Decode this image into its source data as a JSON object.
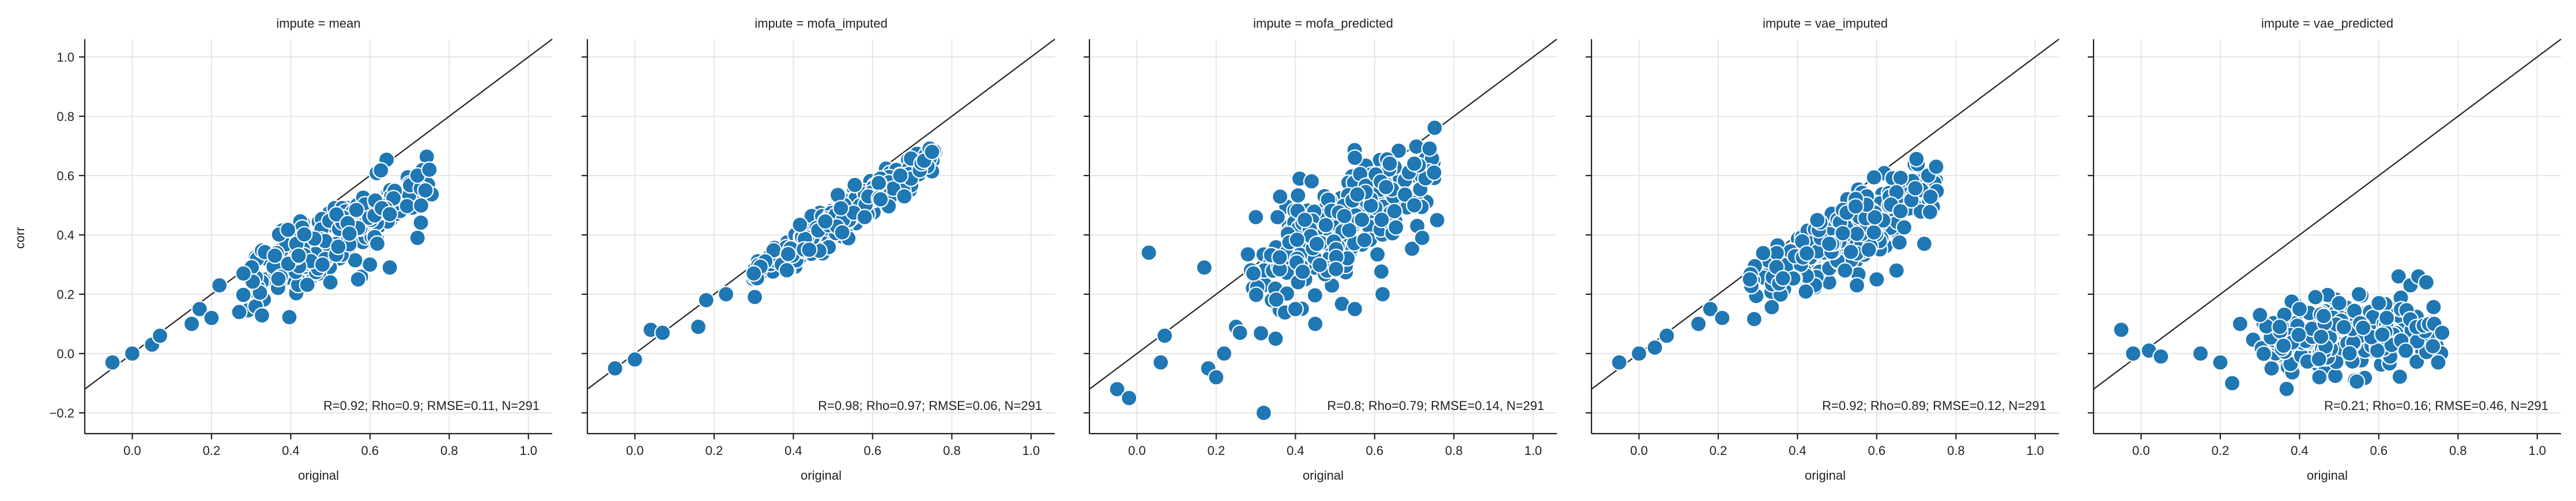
{
  "chart_data": {
    "type": "scatter",
    "facet_var": "impute",
    "xlabel": "original",
    "ylabel": "corr",
    "xlim": [
      -0.12,
      1.06
    ],
    "ylim": [
      -0.27,
      1.06
    ],
    "xticks": [
      0.0,
      0.2,
      0.4,
      0.6,
      0.8,
      1.0
    ],
    "yticks": [
      -0.2,
      0.0,
      0.2,
      0.4,
      0.6,
      0.8,
      1.0
    ],
    "xtick_labels": [
      "0.0",
      "0.2",
      "0.4",
      "0.6",
      "0.8",
      "1.0"
    ],
    "ytick_labels": [
      "−0.2",
      "0.0",
      "0.2",
      "0.4",
      "0.6",
      "0.8",
      "1.0"
    ],
    "grid": true,
    "point_color": "#1f77b4",
    "reference_line": "y = x",
    "panels": [
      {
        "title": "impute = mean",
        "stats": "R=0.92; Rho=0.9; RMSE=0.11, N=291",
        "model": {
          "slope": 0.78,
          "intercept": 0.0,
          "noise": 0.055
        },
        "points": [
          [
            -0.05,
            -0.03
          ],
          [
            0.0,
            0.0
          ],
          [
            0.05,
            0.03
          ],
          [
            0.07,
            0.06
          ],
          [
            0.15,
            0.1
          ],
          [
            0.17,
            0.15
          ],
          [
            0.2,
            0.12
          ],
          [
            0.22,
            0.23
          ],
          [
            0.27,
            0.14
          ],
          [
            0.36,
            0.33
          ],
          [
            0.42,
            0.33
          ],
          [
            0.48,
            0.3
          ],
          [
            0.5,
            0.24
          ],
          [
            0.52,
            0.36
          ],
          [
            0.57,
            0.25
          ],
          [
            0.6,
            0.3
          ],
          [
            0.63,
            0.49
          ],
          [
            0.65,
            0.47
          ],
          [
            0.65,
            0.29
          ],
          [
            0.72,
            0.39
          ],
          [
            0.72,
            0.6
          ],
          [
            0.75,
            0.62
          ],
          [
            0.74,
            0.55
          ]
        ]
      },
      {
        "title": "impute = mofa_imputed",
        "stats": "R=0.98; Rho=0.97; RMSE=0.06, N=291",
        "model": {
          "slope": 0.88,
          "intercept": 0.0,
          "noise": 0.03
        },
        "points": [
          [
            -0.05,
            -0.05
          ],
          [
            0.0,
            -0.02
          ],
          [
            0.04,
            0.08
          ],
          [
            0.07,
            0.07
          ],
          [
            0.16,
            0.09
          ],
          [
            0.18,
            0.18
          ],
          [
            0.23,
            0.2
          ],
          [
            0.3,
            0.27
          ],
          [
            0.44,
            0.35
          ],
          [
            0.52,
            0.49
          ],
          [
            0.58,
            0.46
          ],
          [
            0.62,
            0.52
          ],
          [
            0.67,
            0.6
          ],
          [
            0.68,
            0.53
          ],
          [
            0.73,
            0.65
          ],
          [
            0.75,
            0.68
          ]
        ]
      },
      {
        "title": "impute = mofa_predicted",
        "stats": "R=0.8; Rho=0.79; RMSE=0.14, N=291",
        "model": {
          "slope": 0.83,
          "intercept": 0.0,
          "noise": 0.09
        },
        "points": [
          [
            -0.05,
            -0.12
          ],
          [
            -0.02,
            -0.15
          ],
          [
            0.03,
            0.34
          ],
          [
            0.06,
            -0.03
          ],
          [
            0.07,
            0.06
          ],
          [
            0.17,
            0.29
          ],
          [
            0.18,
            -0.05
          ],
          [
            0.2,
            -0.08
          ],
          [
            0.22,
            0.0
          ],
          [
            0.25,
            0.09
          ],
          [
            0.26,
            0.07
          ],
          [
            0.3,
            0.46
          ],
          [
            0.32,
            -0.2
          ],
          [
            0.35,
            0.05
          ],
          [
            0.4,
            0.15
          ],
          [
            0.45,
            0.1
          ],
          [
            0.55,
            0.66
          ],
          [
            0.62,
            0.2
          ],
          [
            0.65,
            0.48
          ],
          [
            0.7,
            0.64
          ],
          [
            0.7,
            0.5
          ],
          [
            0.72,
            0.39
          ],
          [
            0.75,
            0.61
          ],
          [
            0.55,
            0.15
          ]
        ]
      },
      {
        "title": "impute = vae_imputed",
        "stats": "R=0.92; Rho=0.89; RMSE=0.12, N=291",
        "model": {
          "slope": 0.78,
          "intercept": 0.0,
          "noise": 0.055
        },
        "points": [
          [
            -0.05,
            -0.03
          ],
          [
            0.0,
            0.0
          ],
          [
            0.04,
            0.02
          ],
          [
            0.07,
            0.06
          ],
          [
            0.15,
            0.1
          ],
          [
            0.18,
            0.15
          ],
          [
            0.21,
            0.12
          ],
          [
            0.28,
            0.25
          ],
          [
            0.45,
            0.45
          ],
          [
            0.48,
            0.37
          ],
          [
            0.52,
            0.28
          ],
          [
            0.55,
            0.23
          ],
          [
            0.58,
            0.35
          ],
          [
            0.6,
            0.25
          ],
          [
            0.65,
            0.28
          ],
          [
            0.66,
            0.48
          ],
          [
            0.72,
            0.37
          ],
          [
            0.73,
            0.6
          ],
          [
            0.75,
            0.63
          ]
        ]
      },
      {
        "title": "impute = vae_predicted",
        "stats": "R=0.21; Rho=0.16; RMSE=0.46, N=291",
        "model": {
          "slope": 0.06,
          "intercept": 0.02,
          "noise": 0.055
        },
        "points": [
          [
            -0.05,
            0.08
          ],
          [
            -0.02,
            0.0
          ],
          [
            0.02,
            0.01
          ],
          [
            0.05,
            -0.01
          ],
          [
            0.15,
            0.0
          ],
          [
            0.2,
            -0.03
          ],
          [
            0.23,
            -0.1
          ],
          [
            0.25,
            0.1
          ],
          [
            0.3,
            0.13
          ],
          [
            0.35,
            0.09
          ],
          [
            0.4,
            0.15
          ],
          [
            0.44,
            0.19
          ],
          [
            0.45,
            -0.08
          ],
          [
            0.5,
            0.17
          ],
          [
            0.55,
            0.2
          ],
          [
            0.6,
            0.17
          ],
          [
            0.62,
            0.12
          ],
          [
            0.65,
            0.26
          ],
          [
            0.68,
            0.23
          ],
          [
            0.7,
            0.26
          ],
          [
            0.72,
            0.24
          ],
          [
            0.74,
            0.1
          ],
          [
            0.76,
            0.07
          ],
          [
            0.75,
            -0.03
          ]
        ]
      }
    ]
  }
}
